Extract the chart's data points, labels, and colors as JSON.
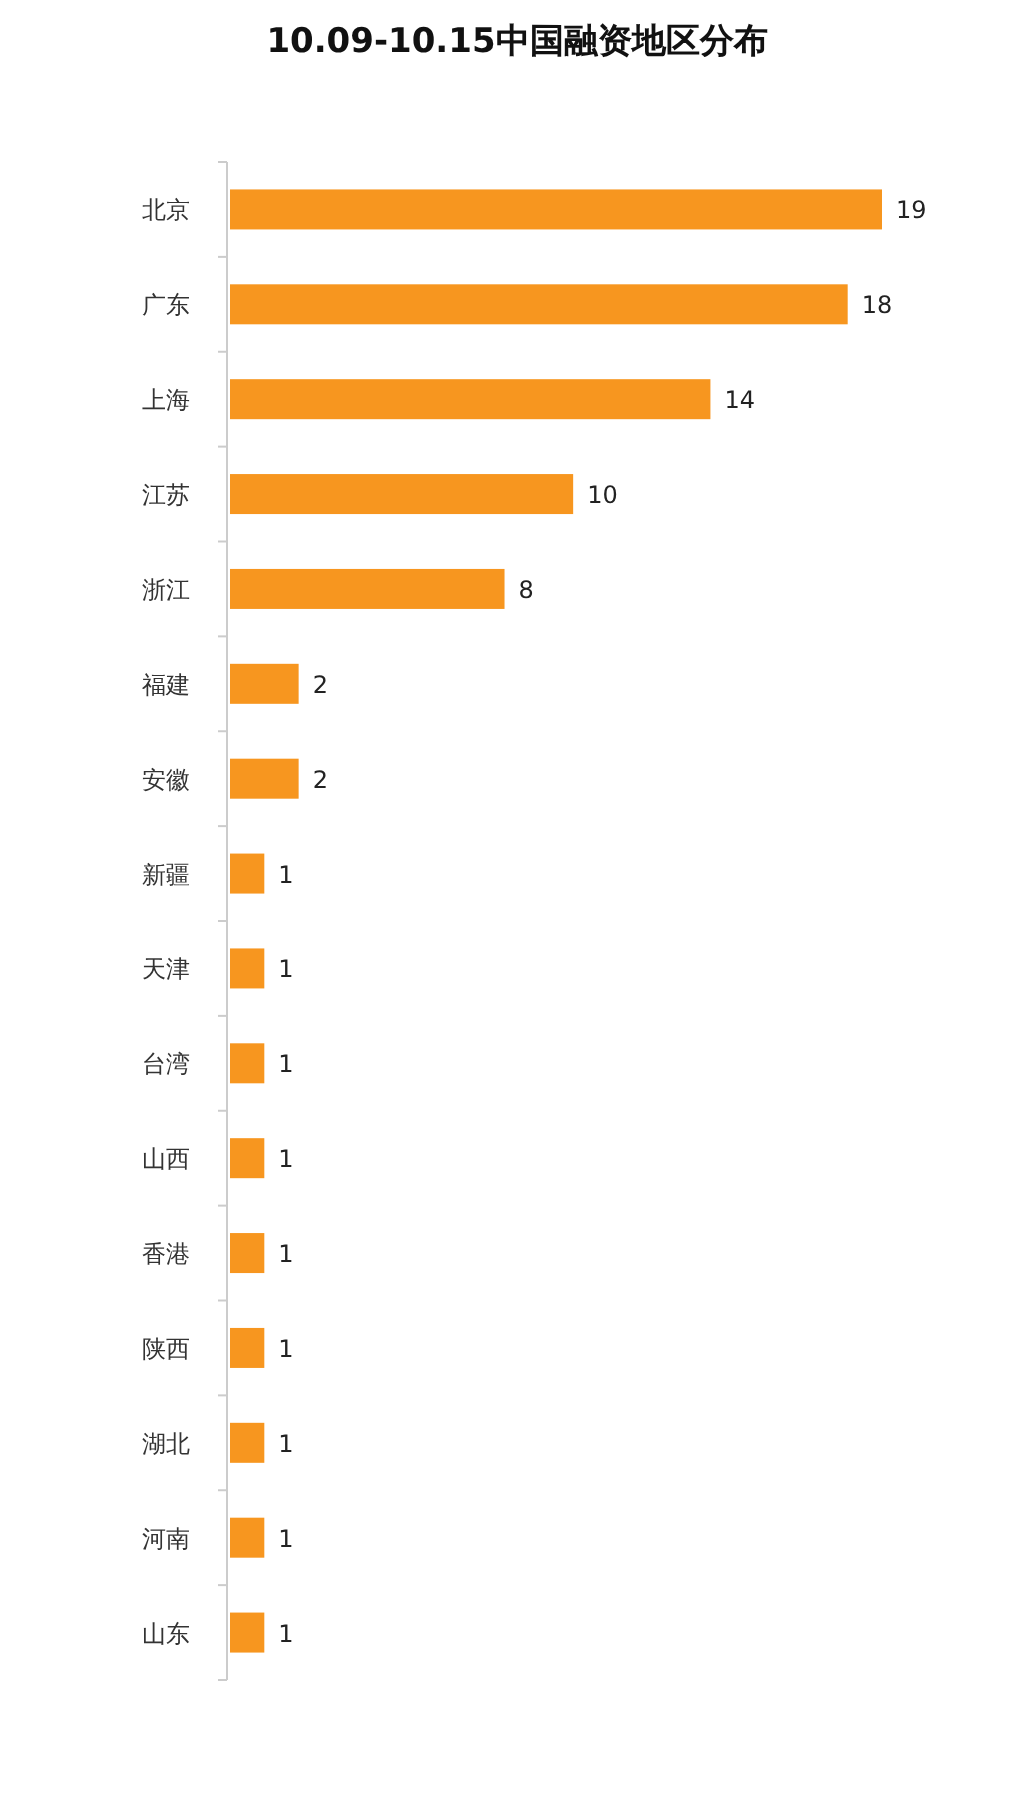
{
  "chart_data": {
    "type": "bar",
    "orientation": "horizontal",
    "title": "10.09-10.15中国融资地区分布",
    "categories": [
      "北京",
      "广东",
      "上海",
      "江苏",
      "浙江",
      "福建",
      "安徽",
      "新疆",
      "天津",
      "台湾",
      "山西",
      "香港",
      "陕西",
      "湖北",
      "河南",
      "山东"
    ],
    "values": [
      19,
      18,
      14,
      10,
      8,
      2,
      2,
      1,
      1,
      1,
      1,
      1,
      1,
      1,
      1,
      1
    ],
    "color": "#f7961f",
    "data_labels": true
  }
}
